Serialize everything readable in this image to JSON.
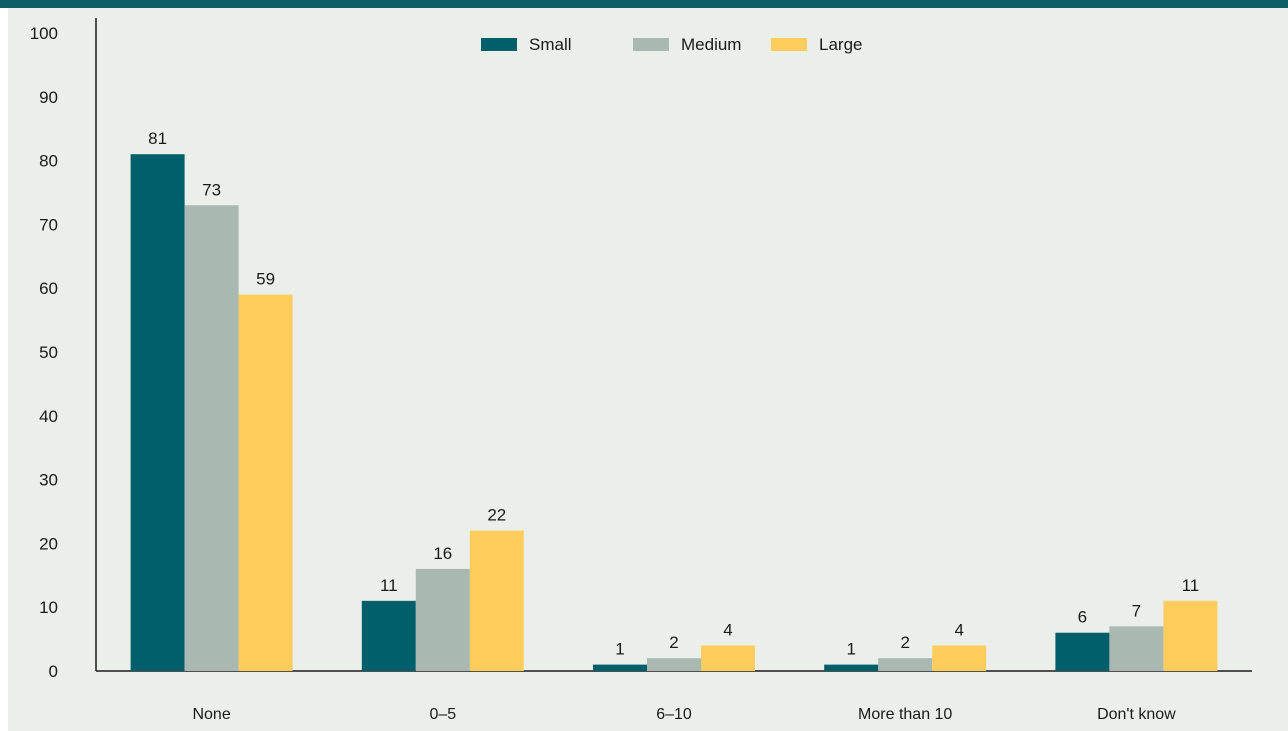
{
  "chart_data": {
    "type": "bar",
    "title": "",
    "xlabel": "",
    "ylabel": "",
    "ylim": [
      0,
      100
    ],
    "yticks": [
      0,
      10,
      20,
      30,
      40,
      50,
      60,
      70,
      80,
      90,
      100
    ],
    "categories": [
      "None",
      "0–5",
      "6–10",
      "More than 10",
      "Don't know"
    ],
    "series": [
      {
        "name": "Small",
        "color": "#005f6b",
        "values": [
          81,
          11,
          1,
          1,
          6
        ]
      },
      {
        "name": "Medium",
        "color": "#a9b8b1",
        "values": [
          73,
          16,
          2,
          2,
          7
        ]
      },
      {
        "name": "Large",
        "color": "#fecd5e",
        "values": [
          59,
          22,
          4,
          4,
          11
        ]
      }
    ],
    "legend": "top-center",
    "grid": false,
    "colors": {
      "header_bar": "#0e5f63",
      "panel_bg": "#eaefea",
      "axis": "#1a1a1a"
    }
  }
}
